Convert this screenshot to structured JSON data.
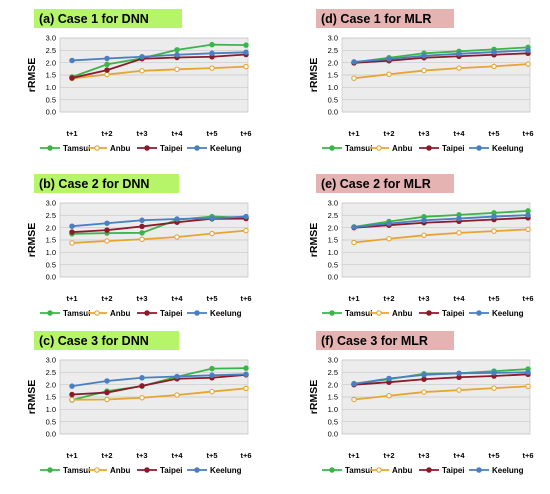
{
  "colors": {
    "Tamsui": "#3cb44b",
    "Anbu": "#e6a532",
    "Taipei": "#8b1a2b",
    "Keelung": "#4a7fc1",
    "dnn_title_bg": "#b6f56a",
    "mlr_title_bg": "#e6b3b3",
    "plot_bg": "#ececec",
    "grid": "#c8c8c8"
  },
  "chart_data": [
    {
      "type": "line",
      "title": "(a) Case 1 for DNN",
      "categories": [
        "t+1",
        "t+2",
        "t+3",
        "t+4",
        "t+5",
        "t+6"
      ],
      "ylabel": "rRMSE",
      "ylim": [
        0,
        3.0
      ],
      "yticks": [
        "0.0",
        "0.5",
        "1.0",
        "1.5",
        "2.0",
        "2.5",
        "3.0"
      ],
      "grid": true,
      "legend": "bottom",
      "series": [
        {
          "name": "Tamsui",
          "values": [
            1.42,
            1.93,
            2.18,
            2.52,
            2.73,
            2.71
          ]
        },
        {
          "name": "Anbu",
          "values": [
            1.36,
            1.52,
            1.67,
            1.73,
            1.78,
            1.84
          ]
        },
        {
          "name": "Taipei",
          "values": [
            1.38,
            1.7,
            2.16,
            2.21,
            2.24,
            2.33
          ]
        },
        {
          "name": "Keelung",
          "values": [
            2.09,
            2.17,
            2.24,
            2.32,
            2.38,
            2.42
          ]
        }
      ]
    },
    {
      "type": "line",
      "title": "(b) Case 2 for DNN",
      "categories": [
        "t+1",
        "t+2",
        "t+3",
        "t+4",
        "t+5",
        "t+6"
      ],
      "ylabel": "rRMSE",
      "ylim": [
        0,
        3.0
      ],
      "yticks": [
        "0.0",
        "0.5",
        "1.0",
        "1.5",
        "2.0",
        "2.5",
        "3.0"
      ],
      "grid": true,
      "legend": "bottom",
      "series": [
        {
          "name": "Tamsui",
          "values": [
            1.75,
            1.78,
            1.79,
            2.32,
            2.45,
            2.4
          ]
        },
        {
          "name": "Anbu",
          "values": [
            1.38,
            1.46,
            1.53,
            1.62,
            1.76,
            1.88
          ]
        },
        {
          "name": "Taipei",
          "values": [
            1.82,
            1.9,
            2.05,
            2.22,
            2.36,
            2.37
          ]
        },
        {
          "name": "Keelung",
          "values": [
            2.06,
            2.18,
            2.3,
            2.35,
            2.38,
            2.45
          ]
        }
      ]
    },
    {
      "type": "line",
      "title": "(c) Case 3 for DNN",
      "categories": [
        "t+1",
        "t+2",
        "t+3",
        "t+4",
        "t+5",
        "t+6"
      ],
      "ylabel": "rRMSE",
      "ylim": [
        0,
        3.0
      ],
      "yticks": [
        "0.0",
        "0.5",
        "1.0",
        "1.5",
        "2.0",
        "2.5",
        "3.0"
      ],
      "grid": true,
      "legend": "bottom",
      "series": [
        {
          "name": "Tamsui",
          "values": [
            1.38,
            1.74,
            1.94,
            2.32,
            2.65,
            2.67
          ]
        },
        {
          "name": "Anbu",
          "values": [
            1.39,
            1.4,
            1.47,
            1.58,
            1.72,
            1.85
          ]
        },
        {
          "name": "Taipei",
          "values": [
            1.6,
            1.68,
            1.95,
            2.24,
            2.28,
            2.4
          ]
        },
        {
          "name": "Keelung",
          "values": [
            1.94,
            2.15,
            2.28,
            2.33,
            2.38,
            2.42
          ]
        }
      ]
    },
    {
      "type": "line",
      "title": "(d) Case 1 for MLR",
      "categories": [
        "t+1",
        "t+2",
        "t+3",
        "t+4",
        "t+5",
        "t+6"
      ],
      "ylabel": "rRMSE",
      "ylim": [
        0,
        3.0
      ],
      "yticks": [
        "0.0",
        "0.5",
        "1.0",
        "1.5",
        "2.0",
        "2.5",
        "3.0"
      ],
      "grid": true,
      "legend": "bottom",
      "series": [
        {
          "name": "Tamsui",
          "values": [
            2.01,
            2.2,
            2.38,
            2.46,
            2.54,
            2.62
          ]
        },
        {
          "name": "Anbu",
          "values": [
            1.37,
            1.53,
            1.68,
            1.78,
            1.85,
            1.94
          ]
        },
        {
          "name": "Taipei",
          "values": [
            1.99,
            2.08,
            2.2,
            2.26,
            2.32,
            2.38
          ]
        },
        {
          "name": "Keelung",
          "values": [
            2.03,
            2.15,
            2.28,
            2.36,
            2.43,
            2.5
          ]
        }
      ]
    },
    {
      "type": "line",
      "title": "(e) Case 2 for MLR",
      "categories": [
        "t+1",
        "t+2",
        "t+3",
        "t+4",
        "t+5",
        "t+6"
      ],
      "ylabel": "rRMSE",
      "ylim": [
        0,
        3.0
      ],
      "yticks": [
        "0.0",
        "0.5",
        "1.0",
        "1.5",
        "2.0",
        "2.5",
        "3.0"
      ],
      "grid": true,
      "legend": "bottom",
      "series": [
        {
          "name": "Tamsui",
          "values": [
            2.03,
            2.25,
            2.44,
            2.52,
            2.6,
            2.68
          ]
        },
        {
          "name": "Anbu",
          "values": [
            1.4,
            1.55,
            1.69,
            1.79,
            1.86,
            1.93
          ]
        },
        {
          "name": "Taipei",
          "values": [
            2.0,
            2.1,
            2.2,
            2.26,
            2.33,
            2.4
          ]
        },
        {
          "name": "Keelung",
          "values": [
            2.02,
            2.17,
            2.3,
            2.37,
            2.45,
            2.51
          ]
        }
      ]
    },
    {
      "type": "line",
      "title": "(f) Case 3 for MLR",
      "categories": [
        "t+1",
        "t+2",
        "t+3",
        "t+4",
        "t+5",
        "t+6"
      ],
      "ylabel": "rRMSE",
      "ylim": [
        0,
        3.0
      ],
      "yticks": [
        "0.0",
        "0.5",
        "1.0",
        "1.5",
        "2.0",
        "2.5",
        "3.0"
      ],
      "grid": true,
      "legend": "bottom",
      "series": [
        {
          "name": "Tamsui",
          "values": [
            2.04,
            2.22,
            2.44,
            2.46,
            2.55,
            2.63
          ]
        },
        {
          "name": "Anbu",
          "values": [
            1.4,
            1.55,
            1.7,
            1.78,
            1.86,
            1.93
          ]
        },
        {
          "name": "Taipei",
          "values": [
            2.0,
            2.1,
            2.22,
            2.3,
            2.35,
            2.42
          ]
        },
        {
          "name": "Keelung",
          "values": [
            2.03,
            2.25,
            2.4,
            2.46,
            2.48,
            2.5
          ]
        }
      ]
    }
  ]
}
